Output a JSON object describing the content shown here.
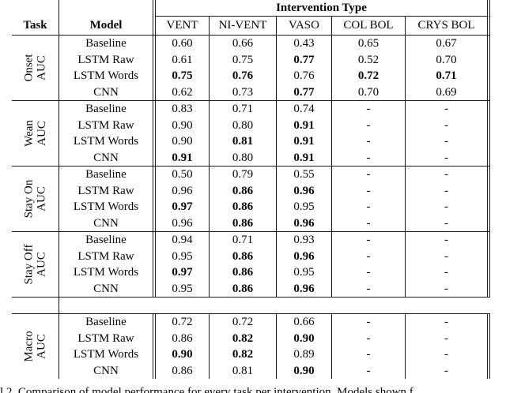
{
  "page": {
    "background_color": "#ffffff",
    "text_color": "#050505",
    "rule_color": "#1a1a1a"
  },
  "table": {
    "header": {
      "task_label": "Task",
      "model_label": "Model",
      "intervention_type_label": "Intervention Type",
      "columns": [
        "VENT",
        "NI-VENT",
        "VASO",
        "COL BOL",
        "CRYS BOL"
      ]
    },
    "main_blocks": [
      {
        "task": {
          "line1": "Onset",
          "line2": "AUC"
        },
        "rows": [
          {
            "model": "Baseline",
            "values": [
              {
                "v": "0.60",
                "bold": false
              },
              {
                "v": "0.66",
                "bold": false
              },
              {
                "v": "0.43",
                "bold": false
              },
              {
                "v": "0.65",
                "bold": false
              },
              {
                "v": "0.67",
                "bold": false
              }
            ]
          },
          {
            "model": "LSTM Raw",
            "values": [
              {
                "v": "0.61",
                "bold": false
              },
              {
                "v": "0.75",
                "bold": false
              },
              {
                "v": "0.77",
                "bold": true
              },
              {
                "v": "0.52",
                "bold": false
              },
              {
                "v": "0.70",
                "bold": false
              }
            ]
          },
          {
            "model": "LSTM Words",
            "values": [
              {
                "v": "0.75",
                "bold": true
              },
              {
                "v": "0.76",
                "bold": true
              },
              {
                "v": "0.76",
                "bold": false
              },
              {
                "v": "0.72",
                "bold": true
              },
              {
                "v": "0.71",
                "bold": true
              }
            ]
          },
          {
            "model": "CNN",
            "values": [
              {
                "v": "0.62",
                "bold": false
              },
              {
                "v": "0.73",
                "bold": false
              },
              {
                "v": "0.77",
                "bold": true
              },
              {
                "v": "0.70",
                "bold": false
              },
              {
                "v": "0.69",
                "bold": false
              }
            ]
          }
        ]
      },
      {
        "task": {
          "line1": "Wean",
          "line2": "AUC"
        },
        "rows": [
          {
            "model": "Baseline",
            "values": [
              {
                "v": "0.83",
                "bold": false
              },
              {
                "v": "0.71",
                "bold": false
              },
              {
                "v": "0.74",
                "bold": false
              },
              {
                "v": "-",
                "bold": false
              },
              {
                "v": "-",
                "bold": false
              }
            ]
          },
          {
            "model": "LSTM Raw",
            "values": [
              {
                "v": "0.90",
                "bold": false
              },
              {
                "v": "0.80",
                "bold": false
              },
              {
                "v": "0.91",
                "bold": true
              },
              {
                "v": "-",
                "bold": false
              },
              {
                "v": "-",
                "bold": false
              }
            ]
          },
          {
            "model": "LSTM Words",
            "values": [
              {
                "v": "0.90",
                "bold": false
              },
              {
                "v": "0.81",
                "bold": true
              },
              {
                "v": "0.91",
                "bold": true
              },
              {
                "v": "-",
                "bold": false
              },
              {
                "v": "-",
                "bold": false
              }
            ]
          },
          {
            "model": "CNN",
            "values": [
              {
                "v": "0.91",
                "bold": true
              },
              {
                "v": "0.80",
                "bold": false
              },
              {
                "v": "0.91",
                "bold": true
              },
              {
                "v": "-",
                "bold": false
              },
              {
                "v": "-",
                "bold": false
              }
            ]
          }
        ]
      },
      {
        "task": {
          "line1": "Stay On",
          "line2": "AUC"
        },
        "rows": [
          {
            "model": "Baseline",
            "values": [
              {
                "v": "0.50",
                "bold": false
              },
              {
                "v": "0.79",
                "bold": false
              },
              {
                "v": "0.55",
                "bold": false
              },
              {
                "v": "-",
                "bold": false
              },
              {
                "v": "-",
                "bold": false
              }
            ]
          },
          {
            "model": "LSTM Raw",
            "values": [
              {
                "v": "0.96",
                "bold": false
              },
              {
                "v": "0.86",
                "bold": true
              },
              {
                "v": "0.96",
                "bold": true
              },
              {
                "v": "-",
                "bold": false
              },
              {
                "v": "-",
                "bold": false
              }
            ]
          },
          {
            "model": "LSTM Words",
            "values": [
              {
                "v": "0.97",
                "bold": true
              },
              {
                "v": "0.86",
                "bold": true
              },
              {
                "v": "0.95",
                "bold": false
              },
              {
                "v": "-",
                "bold": false
              },
              {
                "v": "-",
                "bold": false
              }
            ]
          },
          {
            "model": "CNN",
            "values": [
              {
                "v": "0.96",
                "bold": false
              },
              {
                "v": "0.86",
                "bold": true
              },
              {
                "v": "0.96",
                "bold": true
              },
              {
                "v": "-",
                "bold": false
              },
              {
                "v": "-",
                "bold": false
              }
            ]
          }
        ]
      },
      {
        "task": {
          "line1": "Stay Off",
          "line2": "AUC"
        },
        "rows": [
          {
            "model": "Baseline",
            "values": [
              {
                "v": "0.94",
                "bold": false
              },
              {
                "v": "0.71",
                "bold": false
              },
              {
                "v": "0.93",
                "bold": false
              },
              {
                "v": "-",
                "bold": false
              },
              {
                "v": "-",
                "bold": false
              }
            ]
          },
          {
            "model": "LSTM Raw",
            "values": [
              {
                "v": "0.95",
                "bold": false
              },
              {
                "v": "0.86",
                "bold": true
              },
              {
                "v": "0.96",
                "bold": true
              },
              {
                "v": "-",
                "bold": false
              },
              {
                "v": "-",
                "bold": false
              }
            ]
          },
          {
            "model": "LSTM Words",
            "values": [
              {
                "v": "0.97",
                "bold": true
              },
              {
                "v": "0.86",
                "bold": true
              },
              {
                "v": "0.95",
                "bold": false
              },
              {
                "v": "-",
                "bold": false
              },
              {
                "v": "-",
                "bold": false
              }
            ]
          },
          {
            "model": "CNN",
            "values": [
              {
                "v": "0.95",
                "bold": false
              },
              {
                "v": "0.86",
                "bold": true
              },
              {
                "v": "0.96",
                "bold": true
              },
              {
                "v": "-",
                "bold": false
              },
              {
                "v": "-",
                "bold": false
              }
            ]
          }
        ]
      }
    ],
    "macro_block": {
      "task": {
        "line1": "Macro",
        "line2": "AUC"
      },
      "rows": [
        {
          "model": "Baseline",
          "values": [
            {
              "v": "0.72",
              "bold": false
            },
            {
              "v": "0.72",
              "bold": false
            },
            {
              "v": "0.66",
              "bold": false
            },
            {
              "v": "-",
              "bold": false
            },
            {
              "v": "-",
              "bold": false
            }
          ]
        },
        {
          "model": "LSTM Raw",
          "values": [
            {
              "v": "0.86",
              "bold": false
            },
            {
              "v": "0.82",
              "bold": true
            },
            {
              "v": "0.90",
              "bold": true
            },
            {
              "v": "-",
              "bold": false
            },
            {
              "v": "-",
              "bold": false
            }
          ]
        },
        {
          "model": "LSTM Words",
          "values": [
            {
              "v": "0.90",
              "bold": true
            },
            {
              "v": "0.82",
              "bold": true
            },
            {
              "v": "0.89",
              "bold": false
            },
            {
              "v": "-",
              "bold": false
            },
            {
              "v": "-",
              "bold": false
            }
          ]
        },
        {
          "model": "CNN",
          "values": [
            {
              "v": "0.86",
              "bold": false
            },
            {
              "v": "0.81",
              "bold": false
            },
            {
              "v": "0.90",
              "bold": true
            },
            {
              "v": "-",
              "bold": false
            },
            {
              "v": "-",
              "bold": false
            }
          ]
        }
      ]
    },
    "caption_fragment": "l 2. Comparison of model performance for every task per intervention. Models shown f"
  }
}
